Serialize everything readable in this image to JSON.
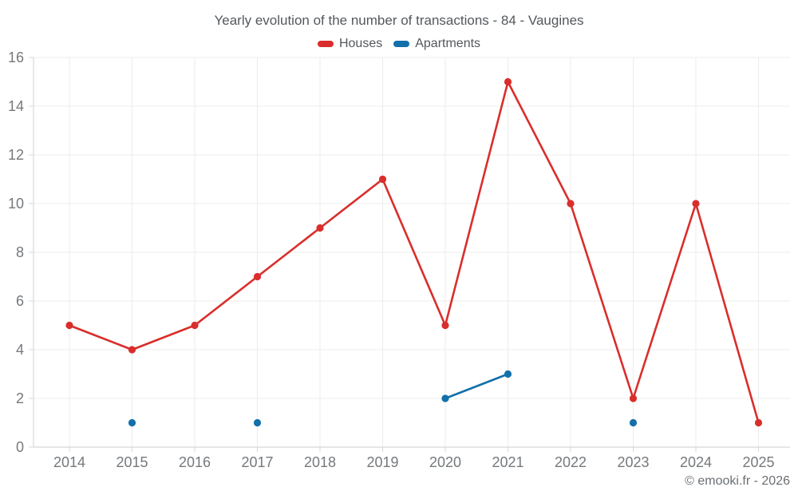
{
  "title": "Yearly evolution of the number of transactions - 84 - Vaugines",
  "footer": "© emooki.fr - 2026",
  "colors": {
    "houses": "#d92e2b",
    "apartments": "#1270aa",
    "grid": "#ececec",
    "axis": "#d8d8d8",
    "tick_label": "#75797d",
    "title_text": "#53585d"
  },
  "chart_data": {
    "type": "line",
    "title": "Yearly evolution of the number of transactions - 84 - Vaugines",
    "x": [
      "2014",
      "2015",
      "2016",
      "2017",
      "2018",
      "2019",
      "2020",
      "2021",
      "2022",
      "2023",
      "2024",
      "2025"
    ],
    "series": [
      {
        "name": "Houses",
        "color_key": "houses",
        "values": [
          5,
          4,
          5,
          7,
          9,
          11,
          5,
          15,
          10,
          2,
          10,
          1
        ]
      },
      {
        "name": "Apartments",
        "color_key": "apartments",
        "values": [
          null,
          1,
          null,
          1,
          null,
          null,
          2,
          3,
          null,
          1,
          null,
          null
        ]
      }
    ],
    "xlabel": "",
    "ylabel": "",
    "ylim": [
      0,
      16
    ],
    "ytick_step": 2,
    "grid": true,
    "legend_position": "top"
  }
}
